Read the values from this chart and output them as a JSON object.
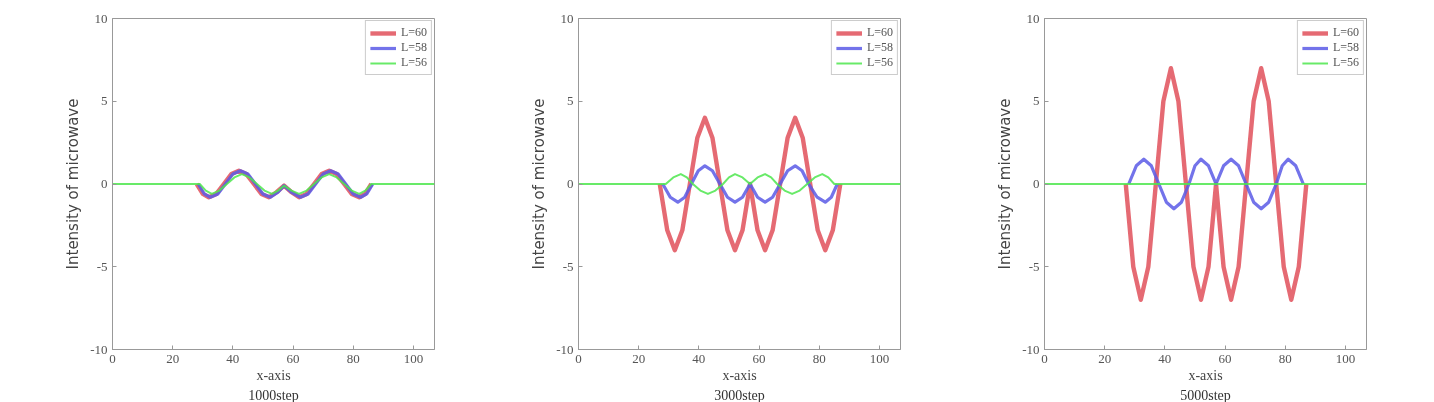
{
  "chart_data": [
    {
      "type": "line",
      "title": "1000step",
      "xlabel": "x-axis",
      "ylabel": "Intensity of microwave",
      "xlim": [
        0,
        107
      ],
      "ylim": [
        -10,
        10
      ],
      "xticks": [
        0,
        20,
        40,
        60,
        80,
        100
      ],
      "yticks": [
        -10,
        -5,
        0,
        5,
        10
      ],
      "legend": "top right",
      "grid": false,
      "marker": "none",
      "line_style": "solid",
      "series": [
        {
          "name": "L=60",
          "color": "#e0505a",
          "x": [
            28,
            30,
            32,
            34.5,
            37,
            39.5,
            42,
            44.5,
            47,
            49.5,
            52,
            54.5,
            57,
            59.5,
            62,
            64.5,
            67,
            69.5,
            72,
            74.5,
            77,
            79.5,
            82,
            84,
            86
          ],
          "values": [
            0,
            -0.6,
            -0.8,
            -0.6,
            0,
            0.6,
            0.8,
            0.6,
            0,
            -0.6,
            -0.8,
            -0.5,
            -0.1,
            -0.5,
            -0.8,
            -0.6,
            0,
            0.6,
            0.8,
            0.6,
            0,
            -0.6,
            -0.8,
            -0.6,
            0
          ]
        },
        {
          "name": "L=58",
          "color": "#5a5ae6",
          "x": [
            28.5,
            30.5,
            32.5,
            35,
            37.5,
            40,
            42.5,
            45,
            47.5,
            50,
            52.5,
            55,
            57,
            59.5,
            62.5,
            65,
            67.5,
            70,
            72.5,
            75,
            77.5,
            80,
            82.5,
            84.5,
            86.5
          ],
          "values": [
            0,
            -0.6,
            -0.8,
            -0.6,
            0,
            0.6,
            0.8,
            0.6,
            0,
            -0.6,
            -0.8,
            -0.5,
            -0.1,
            -0.5,
            -0.8,
            -0.6,
            0,
            0.6,
            0.8,
            0.6,
            0,
            -0.6,
            -0.8,
            -0.6,
            0
          ]
        },
        {
          "name": "L=56",
          "color": "#4ee64e",
          "x": [
            0,
            29,
            31,
            33,
            35.5,
            38,
            40.5,
            43,
            45.5,
            48,
            50.5,
            53,
            55,
            57,
            59.5,
            62,
            64.5,
            67,
            69.5,
            72,
            74.5,
            77,
            79.5,
            82,
            84,
            86,
            107
          ],
          "values": [
            0,
            0,
            -0.4,
            -0.6,
            -0.4,
            0,
            0.4,
            0.6,
            0.4,
            0,
            -0.4,
            -0.6,
            -0.4,
            -0.1,
            -0.4,
            -0.6,
            -0.4,
            0,
            0.4,
            0.6,
            0.4,
            0,
            -0.4,
            -0.6,
            -0.4,
            0,
            0
          ]
        }
      ]
    },
    {
      "type": "line",
      "title": "3000step",
      "xlabel": "x-axis",
      "ylabel": "Intensity of microwave",
      "xlim": [
        0,
        107
      ],
      "ylim": [
        -10,
        10
      ],
      "xticks": [
        0,
        20,
        40,
        60,
        80,
        100
      ],
      "yticks": [
        -10,
        -5,
        0,
        5,
        10
      ],
      "legend": "top right",
      "grid": false,
      "marker": "none",
      "line_style": "solid",
      "series": [
        {
          "name": "L=60",
          "color": "#e0505a",
          "x": [
            27,
            29.5,
            32,
            34.5,
            37,
            39.5,
            42,
            44.5,
            47,
            49.5,
            52,
            54.5,
            57,
            59.5,
            62,
            64.5,
            67,
            69.5,
            72,
            74.5,
            77,
            79.5,
            82,
            84.5,
            87
          ],
          "values": [
            0,
            -2.8,
            -4,
            -2.8,
            0,
            2.8,
            4,
            2.8,
            0,
            -2.8,
            -4,
            -2.8,
            0,
            -2.8,
            -4,
            -2.8,
            0,
            2.8,
            4,
            2.8,
            0,
            -2.8,
            -4,
            -2.8,
            0
          ]
        },
        {
          "name": "L=58",
          "color": "#5a5ae6",
          "x": [
            28,
            30.5,
            33,
            35.3,
            37.5,
            39.8,
            42,
            44.5,
            47,
            49.5,
            52,
            54.5,
            57,
            59.5,
            62,
            64.5,
            67,
            69.5,
            72,
            74.3,
            76.5,
            79.3,
            82,
            84,
            86
          ],
          "values": [
            0,
            -0.8,
            -1.1,
            -0.8,
            0,
            0.8,
            1.1,
            0.8,
            0,
            -0.8,
            -1.1,
            -0.8,
            0,
            -0.8,
            -1.1,
            -0.8,
            0,
            0.8,
            1.1,
            0.8,
            0,
            -0.8,
            -1.1,
            -0.8,
            0
          ]
        },
        {
          "name": "L=56",
          "color": "#4ee64e",
          "x": [
            0,
            29,
            31.5,
            34,
            36,
            38,
            40.5,
            43,
            45.5,
            48,
            50,
            52,
            54.5,
            57,
            59.5,
            62,
            64,
            66,
            68.5,
            71,
            73.5,
            76,
            78.5,
            81,
            83,
            85,
            107
          ],
          "values": [
            0,
            0,
            0.4,
            0.6,
            0.4,
            0,
            -0.4,
            -0.6,
            -0.4,
            0,
            0.4,
            0.6,
            0.4,
            0,
            0.4,
            0.6,
            0.4,
            0,
            -0.4,
            -0.6,
            -0.4,
            0,
            0.4,
            0.6,
            0.4,
            0,
            0
          ]
        }
      ]
    },
    {
      "type": "line",
      "title": "5000step",
      "xlabel": "x-axis",
      "ylabel": "Intensity of microwave",
      "xlim": [
        0,
        107
      ],
      "ylim": [
        -10,
        10
      ],
      "xticks": [
        0,
        20,
        40,
        60,
        80,
        100
      ],
      "yticks": [
        -10,
        -5,
        0,
        5,
        10
      ],
      "legend": "top right",
      "grid": false,
      "marker": "none",
      "line_style": "solid",
      "series": [
        {
          "name": "L=60",
          "color": "#e0505a",
          "x": [
            27,
            29.5,
            32,
            34.5,
            37,
            39.5,
            42,
            44.5,
            47,
            49.5,
            52,
            54.5,
            57,
            59.5,
            62,
            64.5,
            67,
            69.5,
            72,
            74.5,
            77,
            79.5,
            82,
            84.5,
            87
          ],
          "values": [
            0,
            -5,
            -7,
            -5,
            0,
            5,
            7,
            5,
            0,
            -5,
            -7,
            -5,
            0,
            -5,
            -7,
            -5,
            0,
            5,
            7,
            5,
            0,
            -5,
            -7,
            -5,
            0
          ]
        },
        {
          "name": "L=58",
          "color": "#5a5ae6",
          "x": [
            28,
            30.5,
            33,
            35.5,
            38,
            40.5,
            43,
            45.5,
            48,
            50,
            52,
            54.5,
            57,
            59.5,
            62,
            64.5,
            67,
            69.5,
            72,
            74.5,
            77,
            79,
            81,
            83.5,
            86
          ],
          "values": [
            0,
            1.1,
            1.5,
            1.1,
            0,
            -1.1,
            -1.5,
            -1.1,
            0,
            1.1,
            1.5,
            1.1,
            0,
            1.1,
            1.5,
            1.1,
            0,
            -1.1,
            -1.5,
            -1.1,
            0,
            1.1,
            1.5,
            1.1,
            0
          ]
        },
        {
          "name": "L=56",
          "color": "#4ee64e",
          "x": [
            0,
            107
          ],
          "values": [
            0,
            0
          ]
        }
      ]
    }
  ]
}
